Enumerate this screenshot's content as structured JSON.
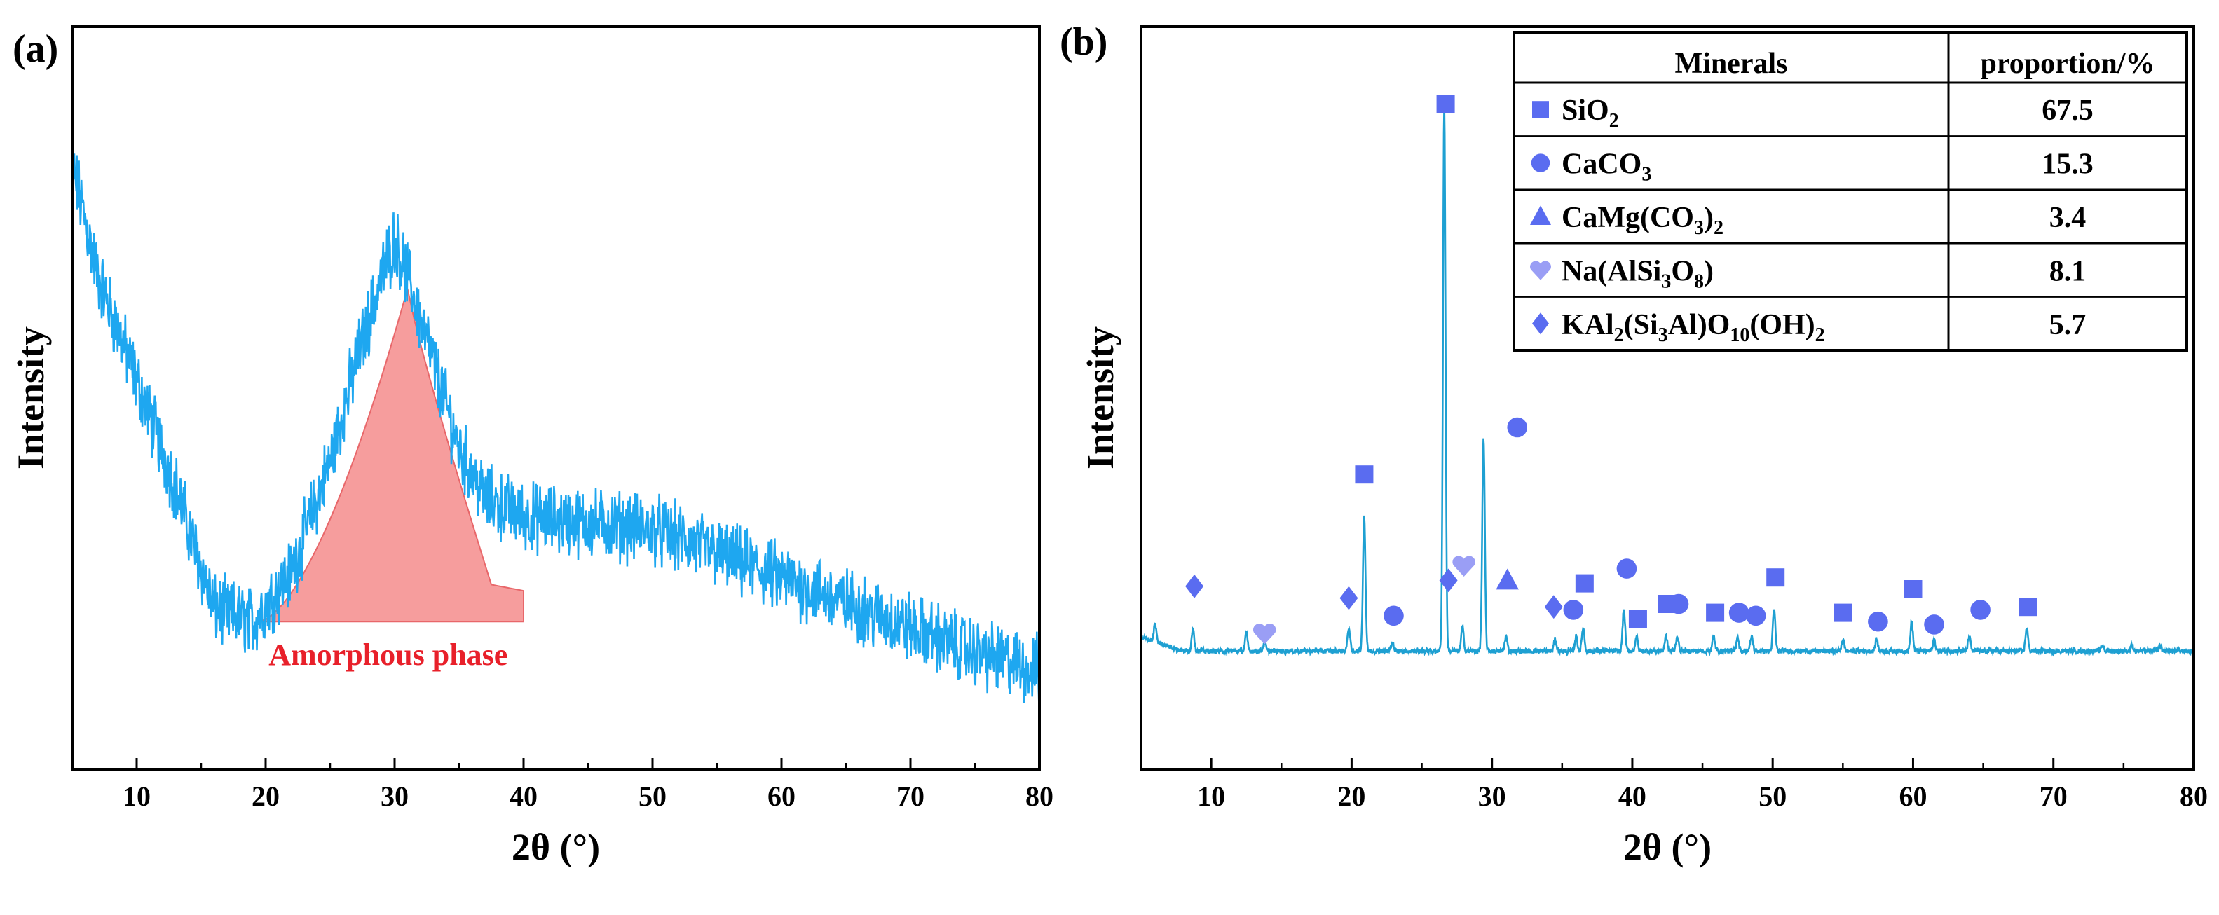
{
  "chart_data": [
    {
      "panel_label": "(a)",
      "type": "line",
      "title": "",
      "xlabel": "2θ (°)",
      "ylabel": "Intensity",
      "xlim": [
        5,
        80
      ],
      "xticks": [
        10,
        20,
        30,
        40,
        50,
        60,
        70,
        80
      ],
      "y_ticks_labeled": false,
      "line_color": "#1ea7f0",
      "baseline_envelope": {
        "x": [
          5,
          7,
          10,
          13,
          16,
          19,
          22,
          25,
          27,
          29,
          30,
          31,
          33,
          35,
          37,
          40,
          45,
          50,
          55,
          60,
          65,
          70,
          75,
          80
        ],
        "y": [
          90,
          72,
          55,
          38,
          18,
          16,
          24,
          42,
          58,
          72,
          78,
          72,
          58,
          44,
          36,
          33,
          32,
          31,
          27,
          23,
          19,
          15,
          11,
          8
        ]
      },
      "noise_amplitude": 4.5,
      "annotation": {
        "text": "Amorphous phase",
        "color": "#e8202a",
        "fill": "#f58f90",
        "region_x": [
          19.5,
          31,
          40
        ],
        "peak_2theta": 31
      }
    },
    {
      "panel_label": "(b)",
      "type": "line",
      "title": "",
      "xlabel": "2θ (°)",
      "ylabel": "Intensity",
      "xlim": [
        5,
        80
      ],
      "xticks": [
        10,
        20,
        30,
        40,
        50,
        60,
        70,
        80
      ],
      "y_ticks_labeled": false,
      "line_color": "#1ea0d2",
      "baseline": 7,
      "peaks": [
        {
          "x": 6.0,
          "h": 3
        },
        {
          "x": 8.7,
          "h": 4
        },
        {
          "x": 12.5,
          "h": 3
        },
        {
          "x": 13.8,
          "h": 1.5
        },
        {
          "x": 19.8,
          "h": 4
        },
        {
          "x": 20.9,
          "h": 23
        },
        {
          "x": 22.9,
          "h": 1.5
        },
        {
          "x": 26.6,
          "h": 93
        },
        {
          "x": 27.9,
          "h": 4
        },
        {
          "x": 29.4,
          "h": 36
        },
        {
          "x": 31.0,
          "h": 2.5
        },
        {
          "x": 34.5,
          "h": 2
        },
        {
          "x": 36.0,
          "h": 2.5
        },
        {
          "x": 36.5,
          "h": 4
        },
        {
          "x": 39.4,
          "h": 7
        },
        {
          "x": 40.3,
          "h": 2.5
        },
        {
          "x": 42.4,
          "h": 2.5
        },
        {
          "x": 43.2,
          "h": 2.5
        },
        {
          "x": 45.8,
          "h": 2.5
        },
        {
          "x": 47.5,
          "h": 2.5
        },
        {
          "x": 48.5,
          "h": 2.5
        },
        {
          "x": 50.1,
          "h": 7
        },
        {
          "x": 55.0,
          "h": 2
        },
        {
          "x": 57.4,
          "h": 2
        },
        {
          "x": 59.9,
          "h": 5
        },
        {
          "x": 61.5,
          "h": 2
        },
        {
          "x": 64.0,
          "h": 2.5
        },
        {
          "x": 68.1,
          "h": 4
        },
        {
          "x": 73.5,
          "h": 1
        },
        {
          "x": 75.6,
          "h": 1
        },
        {
          "x": 77.6,
          "h": 1
        }
      ],
      "markers": [
        {
          "mineral": "KAl2(Si3Al)O10(OH)2",
          "symbol": "diamond",
          "x": 8.8,
          "y": 18
        },
        {
          "mineral": "Na(AlSi3O8)",
          "symbol": "heart",
          "x": 13.8,
          "y": 10
        },
        {
          "mineral": "KAl2(Si3Al)O10(OH)2",
          "symbol": "diamond",
          "x": 19.8,
          "y": 16
        },
        {
          "mineral": "SiO2",
          "symbol": "square",
          "x": 20.9,
          "y": 37
        },
        {
          "mineral": "CaCO3",
          "symbol": "circle",
          "x": 23.0,
          "y": 13
        },
        {
          "mineral": "SiO2",
          "symbol": "square",
          "x": 26.7,
          "y": 100
        },
        {
          "mineral": "KAl2(Si3Al)O10(OH)2",
          "symbol": "diamond",
          "x": 26.9,
          "y": 19
        },
        {
          "mineral": "Na(AlSi3O8)",
          "symbol": "heart",
          "x": 28.0,
          "y": 21.5
        },
        {
          "mineral": "CaMg(CO3)2",
          "symbol": "triangle",
          "x": 31.1,
          "y": 19
        },
        {
          "mineral": "CaCO3",
          "symbol": "circle",
          "x": 31.8,
          "y": 45
        },
        {
          "mineral": "KAl2(Si3Al)O10(OH)2",
          "symbol": "diamond",
          "x": 34.4,
          "y": 14.5
        },
        {
          "mineral": "CaCO3",
          "symbol": "circle",
          "x": 35.8,
          "y": 14
        },
        {
          "mineral": "SiO2",
          "symbol": "square",
          "x": 36.6,
          "y": 18.5
        },
        {
          "mineral": "CaCO3",
          "symbol": "circle",
          "x": 39.6,
          "y": 21
        },
        {
          "mineral": "SiO2",
          "symbol": "square",
          "x": 40.4,
          "y": 12.5
        },
        {
          "mineral": "SiO2",
          "symbol": "square",
          "x": 42.5,
          "y": 15
        },
        {
          "mineral": "CaCO3",
          "symbol": "circle",
          "x": 43.3,
          "y": 15
        },
        {
          "mineral": "SiO2",
          "symbol": "square",
          "x": 45.9,
          "y": 13.5
        },
        {
          "mineral": "CaCO3",
          "symbol": "circle",
          "x": 47.6,
          "y": 13.5
        },
        {
          "mineral": "CaCO3",
          "symbol": "circle",
          "x": 48.8,
          "y": 13
        },
        {
          "mineral": "SiO2",
          "symbol": "square",
          "x": 50.2,
          "y": 19.5
        },
        {
          "mineral": "SiO2",
          "symbol": "square",
          "x": 55.0,
          "y": 13.5
        },
        {
          "mineral": "CaCO3",
          "symbol": "circle",
          "x": 57.5,
          "y": 12
        },
        {
          "mineral": "SiO2",
          "symbol": "square",
          "x": 60.0,
          "y": 17.5
        },
        {
          "mineral": "CaCO3",
          "symbol": "circle",
          "x": 61.5,
          "y": 11.5
        },
        {
          "mineral": "CaCO3",
          "symbol": "circle",
          "x": 64.8,
          "y": 14
        },
        {
          "mineral": "SiO2",
          "symbol": "square",
          "x": 68.2,
          "y": 14.5
        }
      ],
      "table": {
        "headers": [
          "Minerals",
          "proportion/%"
        ],
        "rows": [
          {
            "symbol": "square",
            "color": "#5a6cf0",
            "mineral": "SiO2",
            "proportion": "67.5"
          },
          {
            "symbol": "circle",
            "color": "#5a6cf0",
            "mineral": "CaCO3",
            "proportion": "15.3"
          },
          {
            "symbol": "triangle",
            "color": "#5a6cf0",
            "mineral": "CaMg(CO3)2",
            "proportion": "3.4"
          },
          {
            "symbol": "heart",
            "color": "#9a9ef5",
            "mineral": "Na(AlSi3O8)",
            "proportion": "8.1"
          },
          {
            "symbol": "diamond",
            "color": "#5a6cf0",
            "mineral": "KAl2(Si3Al)O10(OH)2",
            "proportion": "5.7"
          }
        ]
      }
    }
  ]
}
